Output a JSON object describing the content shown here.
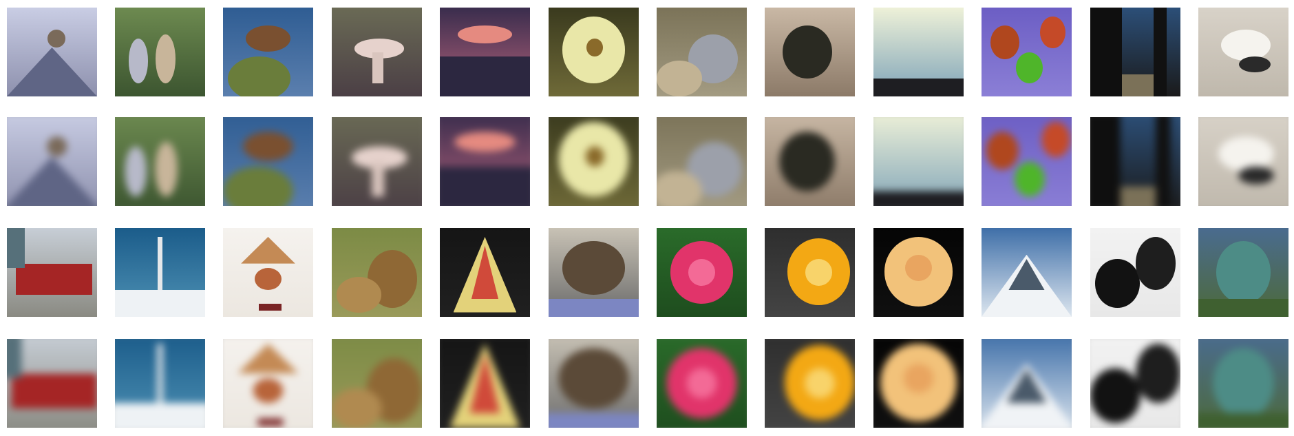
{
  "grid": {
    "rows": 4,
    "cols": 12,
    "row_roles": [
      "original",
      "reconstruction",
      "original",
      "reconstruction"
    ]
  },
  "images": [
    {
      "name": "snowy-peak-figure",
      "bg": [
        "#c9cde4",
        "#8d90ad"
      ],
      "shapes": [
        {
          "t": "tri",
          "c": "#5f6585",
          "l": 0.0,
          "tp": 0.45,
          "w": 1.0,
          "h": 0.55
        },
        {
          "t": "ell",
          "c": "#7a6a5a",
          "l": 0.45,
          "tp": 0.25,
          "w": 0.2,
          "h": 0.2
        }
      ]
    },
    {
      "name": "forest-people",
      "bg": [
        "#6d8a50",
        "#3c5530"
      ],
      "shapes": [
        {
          "t": "ell",
          "c": "#b7b9c9",
          "l": 0.15,
          "tp": 0.35,
          "w": 0.22,
          "h": 0.5
        },
        {
          "t": "ell",
          "c": "#c8b59a",
          "l": 0.45,
          "tp": 0.3,
          "w": 0.22,
          "h": 0.55
        }
      ]
    },
    {
      "name": "bird-on-rock",
      "bg": [
        "#2f5d93",
        "#5b7fae"
      ],
      "shapes": [
        {
          "t": "ell",
          "c": "#6a7d3b",
          "l": 0.05,
          "tp": 0.55,
          "w": 0.7,
          "h": 0.5
        },
        {
          "t": "ell",
          "c": "#7a5030",
          "l": 0.25,
          "tp": 0.2,
          "w": 0.5,
          "h": 0.3
        }
      ]
    },
    {
      "name": "mushroom",
      "bg": [
        "#6a6a55",
        "#4b3f45"
      ],
      "shapes": [
        {
          "t": "ell",
          "c": "#e6d2cc",
          "l": 0.25,
          "tp": 0.35,
          "w": 0.55,
          "h": 0.22
        },
        {
          "t": "rect",
          "c": "#d9c5be",
          "l": 0.45,
          "tp": 0.5,
          "w": 0.12,
          "h": 0.35
        }
      ]
    },
    {
      "name": "sunset-sea",
      "bg": [
        "#3a2d4d",
        "#b3617a"
      ],
      "shapes": [
        {
          "t": "ell",
          "c": "#e58a80",
          "l": 0.2,
          "tp": 0.2,
          "w": 0.6,
          "h": 0.2
        },
        {
          "t": "rect",
          "c": "#2c2740",
          "l": 0.0,
          "tp": 0.55,
          "w": 1.0,
          "h": 0.45
        }
      ]
    },
    {
      "name": "lily-flower",
      "bg": [
        "#3a3a1e",
        "#6f6a38"
      ],
      "shapes": [
        {
          "t": "ell",
          "c": "#e9e7a8",
          "l": 0.15,
          "tp": 0.1,
          "w": 0.7,
          "h": 0.75
        },
        {
          "t": "ell",
          "c": "#8a6a2a",
          "l": 0.42,
          "tp": 0.35,
          "w": 0.18,
          "h": 0.2
        }
      ]
    },
    {
      "name": "alpaca",
      "bg": [
        "#7b7358",
        "#a39b82"
      ],
      "shapes": [
        {
          "t": "ell",
          "c": "#9ca0aa",
          "l": 0.35,
          "tp": 0.3,
          "w": 0.55,
          "h": 0.55
        },
        {
          "t": "ell",
          "c": "#c2b394",
          "l": 0.0,
          "tp": 0.6,
          "w": 0.5,
          "h": 0.4
        }
      ]
    },
    {
      "name": "dark-leaf",
      "bg": [
        "#c9b8a5",
        "#8c7a68"
      ],
      "shapes": [
        {
          "t": "ell",
          "c": "#2a2a22",
          "l": 0.2,
          "tp": 0.2,
          "w": 0.55,
          "h": 0.6
        }
      ]
    },
    {
      "name": "sky-horizon",
      "bg": [
        "#eef1d8",
        "#7ea3b8"
      ],
      "shapes": [
        {
          "t": "rect",
          "c": "#1e1e22",
          "l": 0.0,
          "tp": 0.8,
          "w": 1.0,
          "h": 0.2
        }
      ]
    },
    {
      "name": "apples",
      "bg": [
        "#6c5ec4",
        "#8b7fd6"
      ],
      "shapes": [
        {
          "t": "ell",
          "c": "#b0471e",
          "l": 0.1,
          "tp": 0.2,
          "w": 0.32,
          "h": 0.38
        },
        {
          "t": "ell",
          "c": "#c54a28",
          "l": 0.65,
          "tp": 0.1,
          "w": 0.28,
          "h": 0.36
        },
        {
          "t": "ell",
          "c": "#4fb52a",
          "l": 0.38,
          "tp": 0.5,
          "w": 0.3,
          "h": 0.35
        }
      ]
    },
    {
      "name": "tree-trunks",
      "bg": [
        "#2c4f78",
        "#1a1a1a"
      ],
      "shapes": [
        {
          "t": "rect",
          "c": "#0f0f0f",
          "l": 0.0,
          "tp": 0.0,
          "w": 0.35,
          "h": 1.0
        },
        {
          "t": "rect",
          "c": "#111",
          "l": 0.7,
          "tp": 0.0,
          "w": 0.15,
          "h": 1.0
        },
        {
          "t": "rect",
          "c": "#7b7158",
          "l": 0.35,
          "tp": 0.75,
          "w": 0.35,
          "h": 0.25
        }
      ]
    },
    {
      "name": "white-bird",
      "bg": [
        "#d8d2c8",
        "#bfb8ac"
      ],
      "shapes": [
        {
          "t": "ell",
          "c": "#f5f3ee",
          "l": 0.25,
          "tp": 0.25,
          "w": 0.55,
          "h": 0.35
        },
        {
          "t": "ell",
          "c": "#2a2a2a",
          "l": 0.45,
          "tp": 0.55,
          "w": 0.35,
          "h": 0.18
        }
      ]
    },
    {
      "name": "tram",
      "bg": [
        "#c7ced6",
        "#8a8a82"
      ],
      "shapes": [
        {
          "t": "rect",
          "c": "#a52525",
          "l": 0.1,
          "tp": 0.4,
          "w": 0.85,
          "h": 0.35
        },
        {
          "t": "rect",
          "c": "#56707a",
          "l": 0.0,
          "tp": 0.0,
          "w": 0.2,
          "h": 0.45
        }
      ]
    },
    {
      "name": "rocket-launch",
      "bg": [
        "#1b5c8a",
        "#4f92b5"
      ],
      "shapes": [
        {
          "t": "rect",
          "c": "#eef2f5",
          "l": 0.0,
          "tp": 0.7,
          "w": 1.0,
          "h": 0.3
        },
        {
          "t": "rect",
          "c": "#e6e8ea",
          "l": 0.47,
          "tp": 0.1,
          "w": 0.06,
          "h": 0.6
        }
      ]
    },
    {
      "name": "rooster-lamp",
      "bg": [
        "#f5f2ee",
        "#ece7e0"
      ],
      "shapes": [
        {
          "t": "tri",
          "c": "#c48a55",
          "l": 0.2,
          "tp": 0.1,
          "w": 0.6,
          "h": 0.3
        },
        {
          "t": "ell",
          "c": "#b8643a",
          "l": 0.35,
          "tp": 0.45,
          "w": 0.3,
          "h": 0.25
        },
        {
          "t": "rect",
          "c": "#7a2424",
          "l": 0.4,
          "tp": 0.85,
          "w": 0.25,
          "h": 0.08
        }
      ]
    },
    {
      "name": "lion",
      "bg": [
        "#7c8b45",
        "#9a9a5a"
      ],
      "shapes": [
        {
          "t": "ell",
          "c": "#8f6835",
          "l": 0.4,
          "tp": 0.25,
          "w": 0.55,
          "h": 0.65
        },
        {
          "t": "ell",
          "c": "#b08a50",
          "l": 0.05,
          "tp": 0.55,
          "w": 0.5,
          "h": 0.4
        }
      ]
    },
    {
      "name": "tulip",
      "bg": [
        "#151515",
        "#202020"
      ],
      "shapes": [
        {
          "t": "tri",
          "c": "#e3d27a",
          "l": 0.15,
          "tp": 0.1,
          "w": 0.7,
          "h": 0.85
        },
        {
          "t": "tri",
          "c": "#d04a3a",
          "l": 0.35,
          "tp": 0.2,
          "w": 0.3,
          "h": 0.6
        }
      ]
    },
    {
      "name": "wolf",
      "bg": [
        "#c8c2b5",
        "#6a6a6a"
      ],
      "shapes": [
        {
          "t": "ell",
          "c": "#5b4a38",
          "l": 0.15,
          "tp": 0.15,
          "w": 0.7,
          "h": 0.6
        },
        {
          "t": "rect",
          "c": "#7c86c2",
          "l": 0.0,
          "tp": 0.8,
          "w": 1.0,
          "h": 0.2
        }
      ]
    },
    {
      "name": "pink-rose",
      "bg": [
        "#2a6b2a",
        "#1e4d1e"
      ],
      "shapes": [
        {
          "t": "ell",
          "c": "#e1346a",
          "l": 0.15,
          "tp": 0.15,
          "w": 0.7,
          "h": 0.7
        },
        {
          "t": "ell",
          "c": "#f36a96",
          "l": 0.35,
          "tp": 0.35,
          "w": 0.3,
          "h": 0.3
        }
      ]
    },
    {
      "name": "orange-slice",
      "bg": [
        "#2e2e2e",
        "#444"
      ],
      "shapes": [
        {
          "t": "ell",
          "c": "#f3a814",
          "l": 0.25,
          "tp": 0.12,
          "w": 0.7,
          "h": 0.75
        },
        {
          "t": "ell",
          "c": "#f8d36a",
          "l": 0.45,
          "tp": 0.35,
          "w": 0.3,
          "h": 0.3
        }
      ]
    },
    {
      "name": "yellow-rose",
      "bg": [
        "#050505",
        "#101010"
      ],
      "shapes": [
        {
          "t": "ell",
          "c": "#f2c27a",
          "l": 0.12,
          "tp": 0.1,
          "w": 0.76,
          "h": 0.78
        },
        {
          "t": "ell",
          "c": "#e9a560",
          "l": 0.35,
          "tp": 0.3,
          "w": 0.3,
          "h": 0.3
        }
      ]
    },
    {
      "name": "snowy-mountains",
      "bg": [
        "#3f6fa8",
        "#dde6ef"
      ],
      "shapes": [
        {
          "t": "tri",
          "c": "#f0f3f6",
          "l": 0.0,
          "tp": 0.3,
          "w": 1.0,
          "h": 0.7
        },
        {
          "t": "tri",
          "c": "#4a5a6a",
          "l": 0.3,
          "tp": 0.35,
          "w": 0.4,
          "h": 0.35
        }
      ]
    },
    {
      "name": "skunks",
      "bg": [
        "#f2f2f2",
        "#e8e8e8"
      ],
      "shapes": [
        {
          "t": "ell",
          "c": "#121212",
          "l": 0.05,
          "tp": 0.35,
          "w": 0.5,
          "h": 0.55
        },
        {
          "t": "ell",
          "c": "#1e1e1e",
          "l": 0.5,
          "tp": 0.1,
          "w": 0.45,
          "h": 0.6
        }
      ]
    },
    {
      "name": "dino-statue",
      "bg": [
        "#4a6b8f",
        "#4d6a3a"
      ],
      "shapes": [
        {
          "t": "ell",
          "c": "#4d8c86",
          "l": 0.2,
          "tp": 0.15,
          "w": 0.6,
          "h": 0.7
        },
        {
          "t": "rect",
          "c": "#3f6030",
          "l": 0.0,
          "tp": 0.8,
          "w": 1.0,
          "h": 0.2
        }
      ]
    }
  ]
}
